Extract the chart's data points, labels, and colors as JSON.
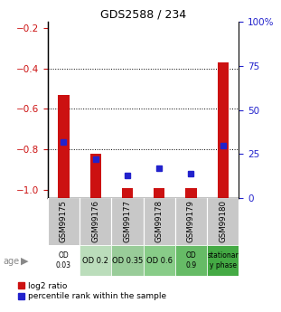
{
  "title": "GDS2588 / 234",
  "samples": [
    "GSM99175",
    "GSM99176",
    "GSM99177",
    "GSM99178",
    "GSM99179",
    "GSM99180"
  ],
  "log2_ratio": [
    -0.53,
    -0.82,
    -0.99,
    -0.99,
    -0.99,
    -0.37
  ],
  "percentile_rank": [
    32,
    22,
    13,
    17,
    14,
    30
  ],
  "ylim_left": [
    -1.04,
    -0.17
  ],
  "ylim_right": [
    0,
    100
  ],
  "yticks_left": [
    -1.0,
    -0.8,
    -0.6,
    -0.4,
    -0.2
  ],
  "yticks_right": [
    0,
    25,
    50,
    75,
    100
  ],
  "dotted_lines": [
    -0.4,
    -0.6,
    -0.8
  ],
  "bar_color": "#cc1111",
  "dot_color": "#2222cc",
  "sample_bg": "#c8c8c8",
  "age_labels": [
    "OD\n0.03",
    "OD 0.2",
    "OD 0.35",
    "OD 0.6",
    "OD\n0.9",
    "stationar\ny phase"
  ],
  "age_bg_colors": [
    "#ffffff",
    "#bbddbb",
    "#99cc99",
    "#88cc88",
    "#66bb66",
    "#44aa44"
  ],
  "tick_label_color_left": "#cc1111",
  "tick_label_color_right": "#2222cc",
  "bar_width": 0.35,
  "legend_items": [
    {
      "label": "log2 ratio",
      "color": "#cc1111"
    },
    {
      "label": "percentile rank within the sample",
      "color": "#2222cc"
    }
  ]
}
